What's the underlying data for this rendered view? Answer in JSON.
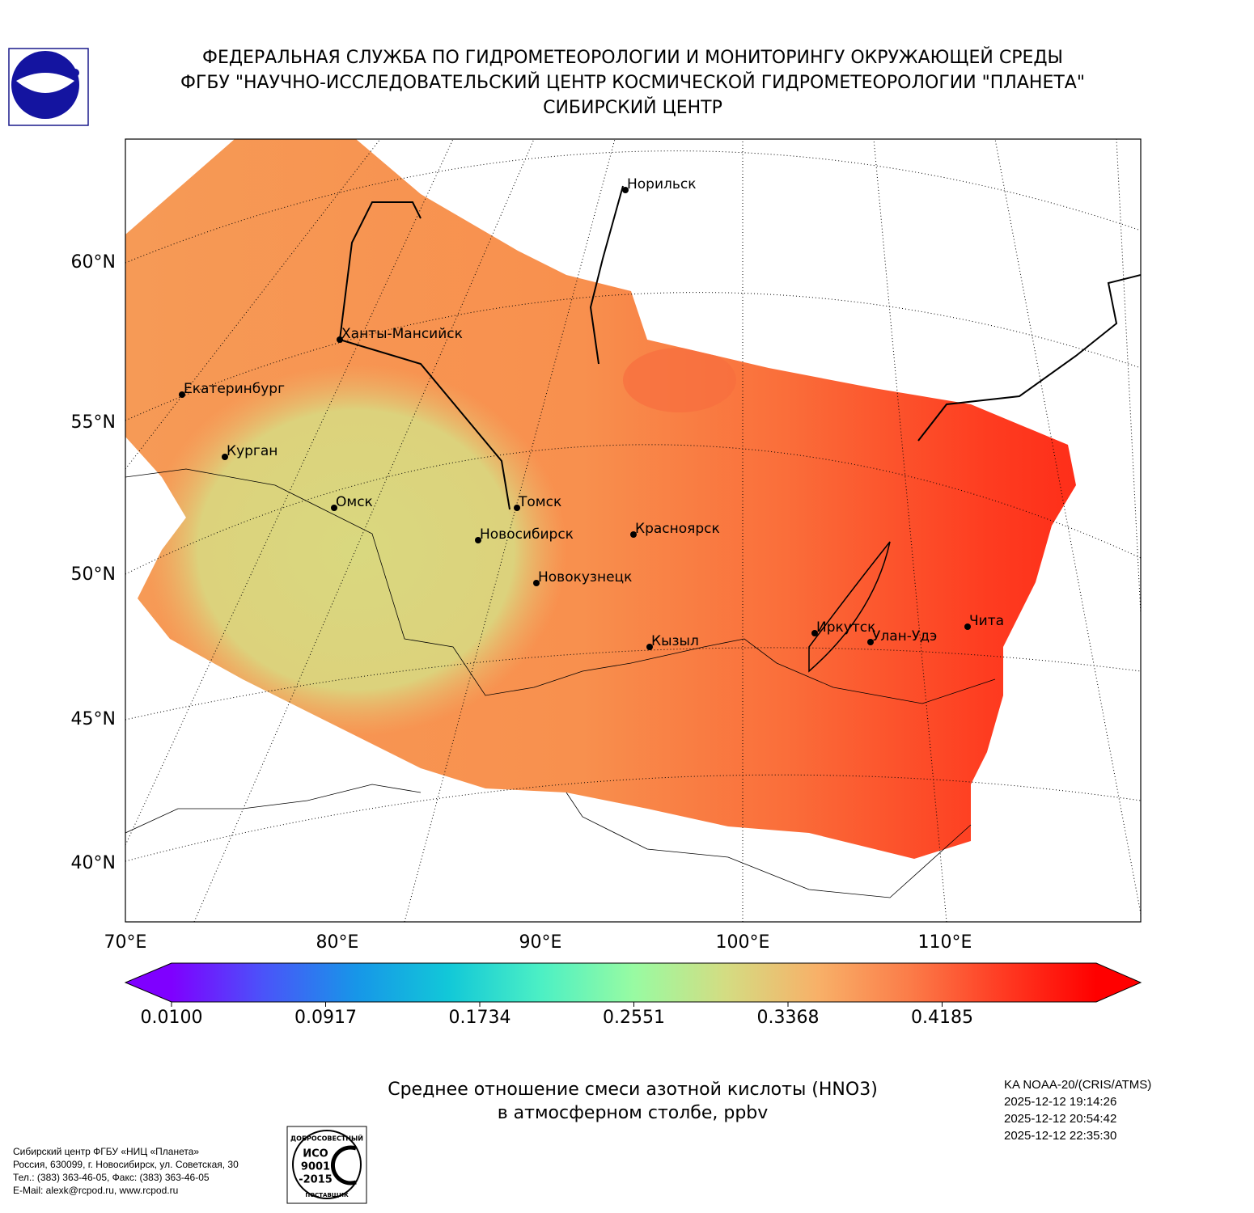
{
  "header": {
    "lines": [
      "ФЕДЕРАЛЬНАЯ СЛУЖБА ПО ГИДРОМЕТЕОРОЛОГИИ И МОНИТОРИНГУ ОКРУЖАЮЩЕЙ СРЕДЫ",
      "ФГБУ \"НАУЧНО-ИССЛЕДОВАТЕЛЬСКИЙ ЦЕНТР КОСМИЧЕСКОЙ ГИДРОМЕТЕОРОЛОГИИ \"ПЛАНЕТА\"",
      "СИБИРСКИЙ ЦЕНТР"
    ]
  },
  "map": {
    "lat_labels": [
      "60°N",
      "55°N",
      "50°N",
      "45°N",
      "40°N"
    ],
    "lon_labels": [
      "70°E",
      "80°E",
      "90°E",
      "100°E",
      "110°E"
    ],
    "cities": [
      "Норильск",
      "Ханты-Мансийск",
      "Екатеринбург",
      "Курган",
      "Омск",
      "Томск",
      "Новосибирск",
      "Красноярск",
      "Новокузнецк",
      "Иркутск",
      "Улан-Удэ",
      "Чита",
      "Кызыл"
    ]
  },
  "colorbar": {
    "lim": [
      0.01,
      0.5002
    ],
    "ticks": [
      {
        "value": 0.01,
        "label": "0.0100"
      },
      {
        "value": 0.0917,
        "label": "0.0917"
      },
      {
        "value": 0.1734,
        "label": "0.1734"
      },
      {
        "value": 0.2551,
        "label": "0.2551"
      },
      {
        "value": 0.3368,
        "label": "0.3368"
      },
      {
        "value": 0.4185,
        "label": "0.4185"
      }
    ],
    "colors": [
      "#7f00ff",
      "#4a54f9",
      "#1796e8",
      "#12c8d8",
      "#4cf0c4",
      "#98fba2",
      "#d4dc82",
      "#f8b068",
      "#fb7b48",
      "#ff3a22",
      "#ff0000"
    ]
  },
  "title": [
    "Среднее отношение смеси азотной кислоты (HNO3)",
    "в атмосферном столбе, ppbv"
  ],
  "info": [
    "KA NOAA-20/(CRIS/ATMS)",
    "2025-12-12 19:14:26",
    "2025-12-12 20:54:42",
    "2025-12-12 22:35:30"
  ],
  "footer": [
    "Сибирский центр ФГБУ «НИЦ «Планета»",
    "Россия, 630099, г. Новосибирск, ул. Советская, 30",
    "Тел.: (383) 363-46-05, Факс: (383) 363-46-05",
    "E-Mail: alexk@rcpod.ru, www.rcpod.ru"
  ],
  "badge": [
    "ДОБРОСОВЕСТНЫЙ",
    "ИСО",
    "9001",
    "-2015",
    "ПОСТАВЩИК"
  ]
}
